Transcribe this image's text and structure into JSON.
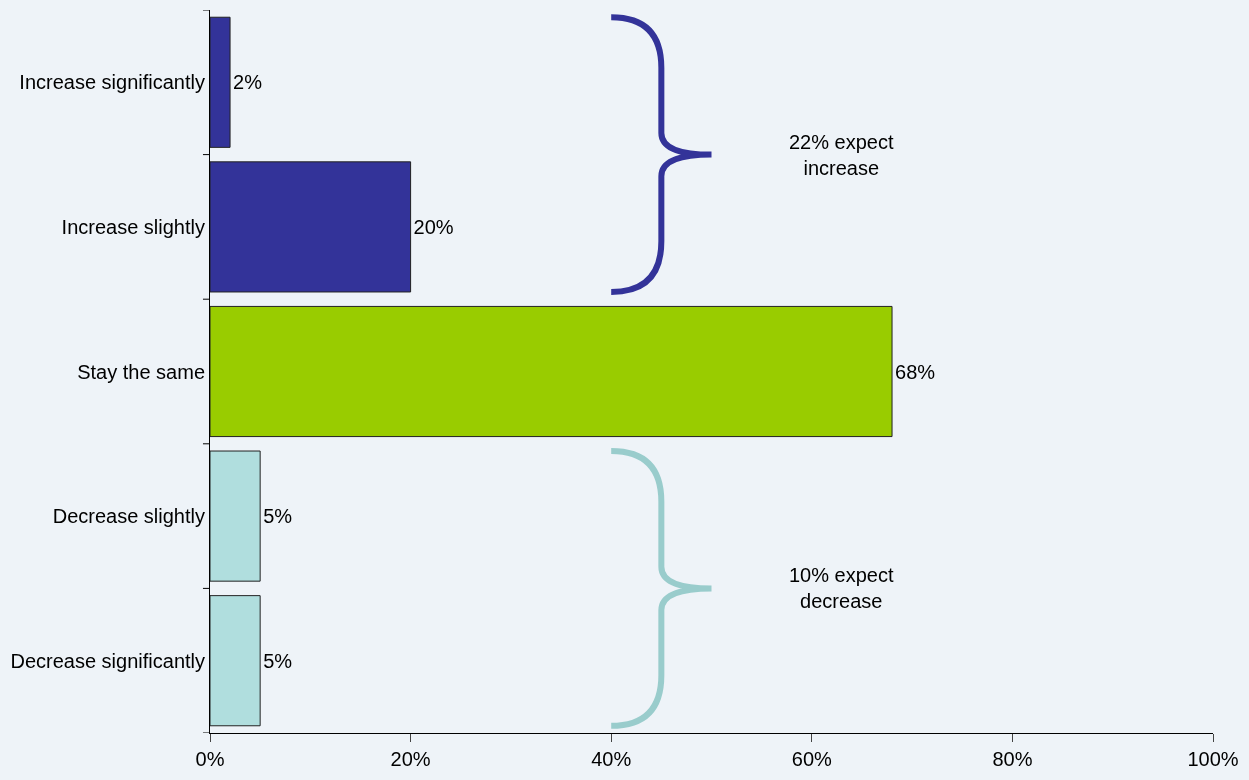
{
  "chart_data": {
    "type": "bar",
    "orientation": "horizontal",
    "categories": [
      "Increase significantly",
      "Increase slightly",
      "Stay the same",
      "Decrease slightly",
      "Decrease significantly"
    ],
    "values": [
      2,
      20,
      68,
      5,
      5
    ],
    "colors": [
      "#333399",
      "#333399",
      "#99cc00",
      "#b0dede",
      "#b0dede"
    ],
    "value_labels": [
      "2%",
      "20%",
      "68%",
      "5%",
      "5%"
    ],
    "xlim": [
      0,
      100
    ],
    "xticks": [
      {
        "value": 0,
        "label": "0%"
      },
      {
        "value": 20,
        "label": "20%"
      },
      {
        "value": 40,
        "label": "40%"
      },
      {
        "value": 60,
        "label": "60%"
      },
      {
        "value": 80,
        "label": "80%"
      },
      {
        "value": 100,
        "label": "100%"
      }
    ],
    "annotations": [
      "22% expect\nincrease",
      "10% expect\ndecrease"
    ],
    "grid": false
  }
}
